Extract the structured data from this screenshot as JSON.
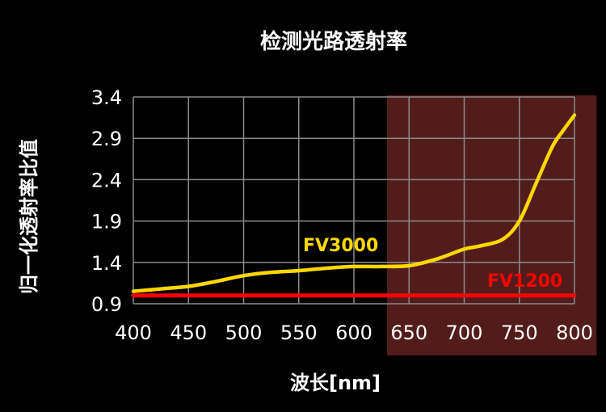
{
  "chart_data": {
    "type": "line",
    "title": "检测光路透射率",
    "xlabel": "波长[nm]",
    "ylabel": "归一化透射率比值",
    "x_ticks": [
      400,
      450,
      500,
      550,
      600,
      650,
      700,
      750,
      800
    ],
    "y_ticks": [
      0.9,
      1.4,
      1.9,
      2.4,
      2.9,
      3.4
    ],
    "xlim": [
      400,
      800
    ],
    "ylim": [
      0.9,
      3.4
    ],
    "grid": true,
    "highlight_band": {
      "from": 630,
      "to": 820,
      "color": "#5a1e1e"
    },
    "series": [
      {
        "name": "FV3000",
        "color": "#ffd700",
        "x": [
          400,
          425,
          450,
          475,
          500,
          525,
          550,
          575,
          600,
          625,
          650,
          675,
          700,
          715,
          735,
          750,
          765,
          780,
          790,
          800
        ],
        "values": [
          1.05,
          1.08,
          1.11,
          1.17,
          1.24,
          1.28,
          1.3,
          1.33,
          1.35,
          1.35,
          1.36,
          1.44,
          1.56,
          1.6,
          1.68,
          1.9,
          2.35,
          2.8,
          3.0,
          3.18
        ]
      },
      {
        "name": "FV1200",
        "color": "#ff0000",
        "x": [
          400,
          800
        ],
        "values": [
          1.0,
          1.0
        ]
      }
    ]
  }
}
